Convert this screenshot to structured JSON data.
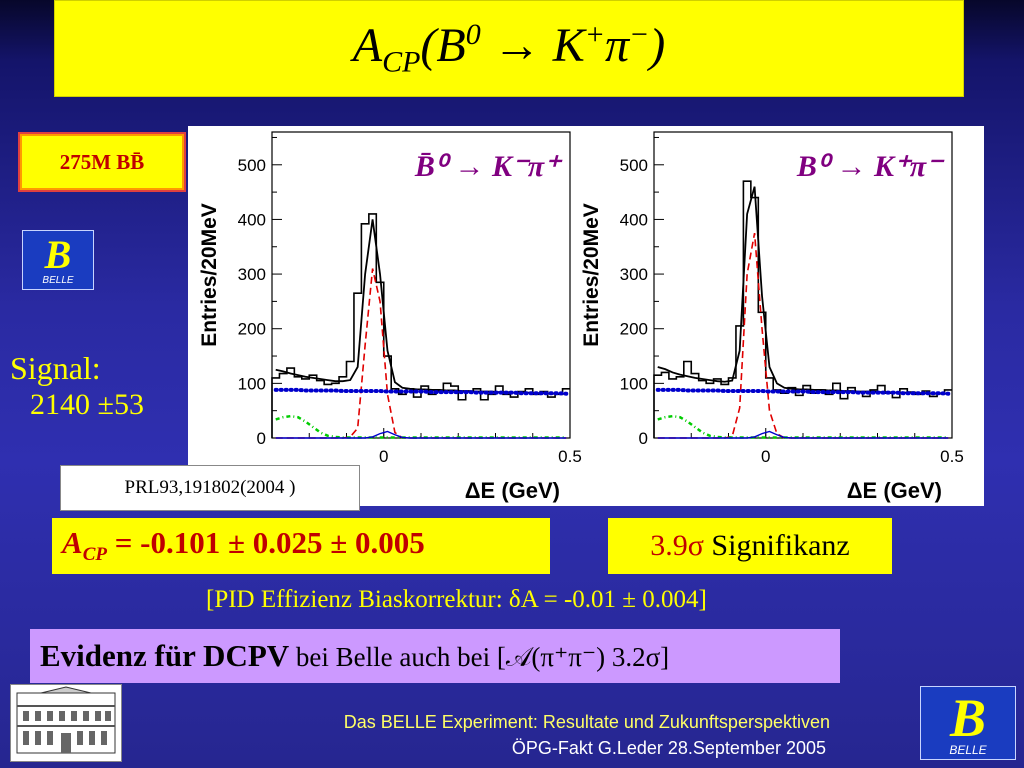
{
  "title": {
    "A": "A",
    "sub": "CP",
    "open": "(B",
    "sup0": "0",
    "arrow": " → K",
    "supplus": "+",
    "pi": "π",
    "supminus": "−",
    "close": ")"
  },
  "events": "275M BB̄",
  "logo_text": "BELLE",
  "signal": {
    "label": "Signal:",
    "value": "2140 ±53"
  },
  "reference": "PRL93,191802(2004 )",
  "acp_result": {
    "A": "A",
    "sub": "CP",
    "rest": " = -0.101 ± 0.025 ± 0.005"
  },
  "significance": {
    "value": "3.9σ",
    "text": " Signifikanz"
  },
  "pid_note": "[PID Effizienz Biaskorrektur: δA = -0.01 ± 0.004]",
  "evidence": {
    "bold": "Evidenz für DCPV",
    "rest": " bei Belle  auch bei [𝒜(π⁺π⁻) 3.2σ]"
  },
  "footer": {
    "line1": "Das BELLE Experiment: Resultate und Zukunftsperspektiven",
    "line2": "ÖPG-Fakt  G.Leder  28.September 2005"
  },
  "colors": {
    "title_bg": "#ffff00",
    "highlight": "#c00000",
    "evidence_bg": "#cc99ff",
    "slide_bg": "#2a2aa2"
  },
  "chart_data": [
    {
      "type": "histogram",
      "title": "B̄⁰ → K⁻π⁺",
      "xlabel": "ΔE (GeV)",
      "ylabel": "Entries/20MeV",
      "xlim": [
        -0.3,
        0.5
      ],
      "ylim": [
        0,
        560
      ],
      "xticks": [
        "0",
        "0.5"
      ],
      "yticks": [
        "0",
        "100",
        "200",
        "300",
        "400",
        "500"
      ],
      "bin_width": 0.02,
      "x_bin_low": [
        -0.3,
        -0.28,
        -0.26,
        -0.24,
        -0.22,
        -0.2,
        -0.18,
        -0.16,
        -0.14,
        -0.12,
        -0.1,
        -0.08,
        -0.06,
        -0.04,
        -0.02,
        0.0,
        0.02,
        0.04,
        0.06,
        0.08,
        0.1,
        0.12,
        0.14,
        0.16,
        0.18,
        0.2,
        0.22,
        0.24,
        0.26,
        0.28,
        0.3,
        0.32,
        0.34,
        0.36,
        0.38,
        0.4,
        0.42,
        0.44,
        0.46,
        0.48
      ],
      "data": [
        110,
        118,
        128,
        112,
        108,
        115,
        105,
        98,
        100,
        112,
        140,
        265,
        392,
        410,
        285,
        150,
        90,
        80,
        90,
        75,
        95,
        80,
        85,
        100,
        95,
        70,
        85,
        90,
        70,
        80,
        95,
        80,
        75,
        85,
        90,
        80,
        85,
        75,
        80,
        90
      ],
      "series": [
        {
          "name": "total fit",
          "style": "solid black",
          "y": [
            125,
            122,
            118,
            115,
            112,
            110,
            108,
            106,
            104,
            104,
            106,
            130,
            300,
            400,
            300,
            160,
            102,
            92,
            90,
            89,
            89,
            88,
            88,
            87,
            87,
            86,
            86,
            85,
            85,
            85,
            84,
            84,
            83,
            83,
            83,
            82,
            82,
            81,
            81,
            81
          ]
        },
        {
          "name": "signal",
          "style": "dashed red",
          "y": [
            0,
            0,
            0,
            0,
            0,
            0,
            0,
            0,
            0,
            0,
            2,
            18,
            170,
            310,
            250,
            80,
            10,
            0,
            0,
            0,
            0,
            0,
            0,
            0,
            0,
            0,
            0,
            0,
            0,
            0,
            0,
            0,
            0,
            0,
            0,
            0,
            0,
            0,
            0,
            0
          ]
        },
        {
          "name": "background",
          "style": "dotted blue",
          "y": [
            88,
            88,
            88,
            88,
            87,
            87,
            87,
            87,
            87,
            86,
            86,
            86,
            86,
            86,
            86,
            85,
            85,
            85,
            85,
            85,
            85,
            84,
            84,
            84,
            84,
            84,
            84,
            83,
            83,
            83,
            83,
            83,
            83,
            82,
            82,
            82,
            82,
            82,
            82,
            81
          ]
        },
        {
          "name": "green component",
          "style": "dash-dot green",
          "y": [
            34,
            38,
            40,
            38,
            30,
            20,
            10,
            4,
            2,
            1,
            1,
            1,
            1,
            1,
            1,
            1,
            1,
            1,
            1,
            1,
            1,
            1,
            1,
            1,
            1,
            1,
            1,
            1,
            1,
            1,
            1,
            1,
            1,
            1,
            1,
            1,
            1,
            1,
            1,
            1
          ]
        },
        {
          "name": "blue component",
          "style": "solid blue",
          "y": [
            0,
            0,
            0,
            0,
            0,
            0,
            0,
            0,
            0,
            0,
            0,
            0,
            0,
            2,
            8,
            12,
            6,
            1,
            0,
            0,
            0,
            0,
            0,
            0,
            0,
            0,
            0,
            0,
            0,
            0,
            0,
            0,
            0,
            0,
            0,
            0,
            0,
            0,
            0,
            0
          ]
        }
      ]
    },
    {
      "type": "histogram",
      "title": "B⁰ → K⁺π⁻",
      "xlabel": "ΔE (GeV)",
      "ylabel": "Entries/20MeV",
      "xlim": [
        -0.3,
        0.5
      ],
      "ylim": [
        0,
        560
      ],
      "xticks": [
        "0",
        "0.5"
      ],
      "yticks": [
        "0",
        "100",
        "200",
        "300",
        "400",
        "500"
      ],
      "bin_width": 0.02,
      "x_bin_low": [
        -0.3,
        -0.28,
        -0.26,
        -0.24,
        -0.22,
        -0.2,
        -0.18,
        -0.16,
        -0.14,
        -0.12,
        -0.1,
        -0.08,
        -0.06,
        -0.04,
        -0.02,
        0.0,
        0.02,
        0.04,
        0.06,
        0.08,
        0.1,
        0.12,
        0.14,
        0.16,
        0.18,
        0.2,
        0.22,
        0.24,
        0.26,
        0.28,
        0.3,
        0.32,
        0.34,
        0.36,
        0.38,
        0.4,
        0.42,
        0.44,
        0.46,
        0.48
      ],
      "data": [
        115,
        120,
        108,
        112,
        140,
        118,
        105,
        100,
        108,
        98,
        110,
        205,
        470,
        440,
        230,
        110,
        88,
        82,
        92,
        78,
        96,
        82,
        88,
        80,
        100,
        72,
        92,
        84,
        76,
        88,
        96,
        82,
        74,
        90,
        84,
        80,
        86,
        76,
        82,
        88
      ],
      "series": [
        {
          "name": "total fit",
          "style": "solid black",
          "y": [
            130,
            126,
            120,
            116,
            113,
            110,
            108,
            106,
            104,
            103,
            105,
            160,
            410,
            460,
            260,
            130,
            100,
            92,
            90,
            89,
            89,
            88,
            88,
            87,
            87,
            86,
            86,
            85,
            85,
            85,
            84,
            84,
            83,
            83,
            83,
            82,
            82,
            81,
            81,
            81
          ]
        },
        {
          "name": "signal",
          "style": "dashed red",
          "y": [
            0,
            0,
            0,
            0,
            0,
            0,
            0,
            0,
            0,
            0,
            3,
            55,
            300,
            375,
            200,
            50,
            8,
            0,
            0,
            0,
            0,
            0,
            0,
            0,
            0,
            0,
            0,
            0,
            0,
            0,
            0,
            0,
            0,
            0,
            0,
            0,
            0,
            0,
            0,
            0
          ]
        },
        {
          "name": "background",
          "style": "dotted blue",
          "y": [
            88,
            88,
            88,
            88,
            87,
            87,
            87,
            87,
            87,
            86,
            86,
            86,
            86,
            86,
            86,
            85,
            85,
            85,
            85,
            85,
            85,
            84,
            84,
            84,
            84,
            84,
            84,
            83,
            83,
            83,
            83,
            83,
            83,
            82,
            82,
            82,
            82,
            82,
            82,
            81
          ]
        },
        {
          "name": "green component",
          "style": "dash-dot green",
          "y": [
            34,
            38,
            40,
            38,
            30,
            20,
            10,
            4,
            2,
            1,
            1,
            1,
            1,
            1,
            1,
            1,
            1,
            1,
            1,
            1,
            1,
            1,
            1,
            1,
            1,
            1,
            1,
            1,
            1,
            1,
            1,
            1,
            1,
            1,
            1,
            1,
            1,
            1,
            1,
            1
          ]
        },
        {
          "name": "blue component",
          "style": "solid blue",
          "y": [
            0,
            0,
            0,
            0,
            0,
            0,
            0,
            0,
            0,
            0,
            0,
            0,
            0,
            2,
            8,
            12,
            6,
            1,
            0,
            0,
            0,
            0,
            0,
            0,
            0,
            0,
            0,
            0,
            0,
            0,
            0,
            0,
            0,
            0,
            0,
            0,
            0,
            0,
            0,
            0
          ]
        }
      ]
    }
  ]
}
